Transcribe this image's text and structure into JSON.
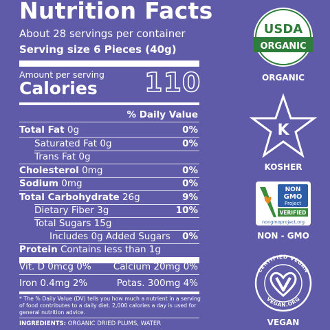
{
  "panel": {
    "title": "Nutrition Facts",
    "servings_per_container": "About 28 servings per container",
    "serving_size": "Serving size 6 Pieces (40g)",
    "amount_per_serving": "Amount per serving",
    "calories_label": "Calories",
    "calories_value": "110",
    "daily_value_header": "% Daily Value",
    "nutrients": [
      {
        "label": "Total Fat",
        "amount": "0g",
        "dv": "0%"
      },
      {
        "label": "Saturated Fat",
        "amount": "0g",
        "dv": "0%"
      },
      {
        "label": "Trans Fat",
        "amount": "0g",
        "dv": ""
      },
      {
        "label": "Cholesterol",
        "amount": "0mg",
        "dv": "0%"
      },
      {
        "label": "Sodium",
        "amount": "0mg",
        "dv": "0%"
      },
      {
        "label": "Total Carbohydrate",
        "amount": "26g",
        "dv": "9%"
      },
      {
        "label": "Dietary Fiber",
        "amount": "3g",
        "dv": "10%"
      },
      {
        "label": "Total Sugars",
        "amount": "15g",
        "dv": ""
      },
      {
        "label": "Includes 0g Added Sugars",
        "amount": "",
        "dv": "0%"
      },
      {
        "label": "Protein",
        "amount": "Contains less than 1g",
        "dv": ""
      }
    ],
    "vitamins": {
      "vit_d": "Vit. D 0mcg 0%",
      "calcium": "Calcium 20mg 0%",
      "iron": "Iron 0.4mg 2%",
      "potassium": "Potas. 300mg 4%"
    },
    "footnote": "* The % Daily Value (DV) tells you how much a nutrient in a serving of food contributes to a daily diet. 2,000 calories a day is used for general nutrition advice.",
    "ingredients_label": "INGREDIENTS:",
    "ingredients_text": "ORGANIC DRIED PLUMS, WATER"
  },
  "certifications": {
    "usda": {
      "seal_top": "USDA",
      "seal_bottom": "ORGANIC",
      "label": "ORGANIC"
    },
    "kosher": {
      "symbol": "K",
      "label": "KOSHER"
    },
    "nongmo": {
      "line1": "NON",
      "line2": "GMO",
      "line3": "Project",
      "verified": "VERIFIED",
      "url": "nongmoproject.org",
      "label": "NON - GMO"
    },
    "vegan": {
      "ring_top": "CERTIFIED VEGAN",
      "ring_bottom": "VEGAN.ORG",
      "label": "VEGAN"
    }
  },
  "colors": {
    "background": "#5f5ba8",
    "text": "#ffffff",
    "usda_green": "#2f7d3a",
    "nongmo_green": "#3c8a3d",
    "nongmo_blue": "#2e5da8"
  }
}
